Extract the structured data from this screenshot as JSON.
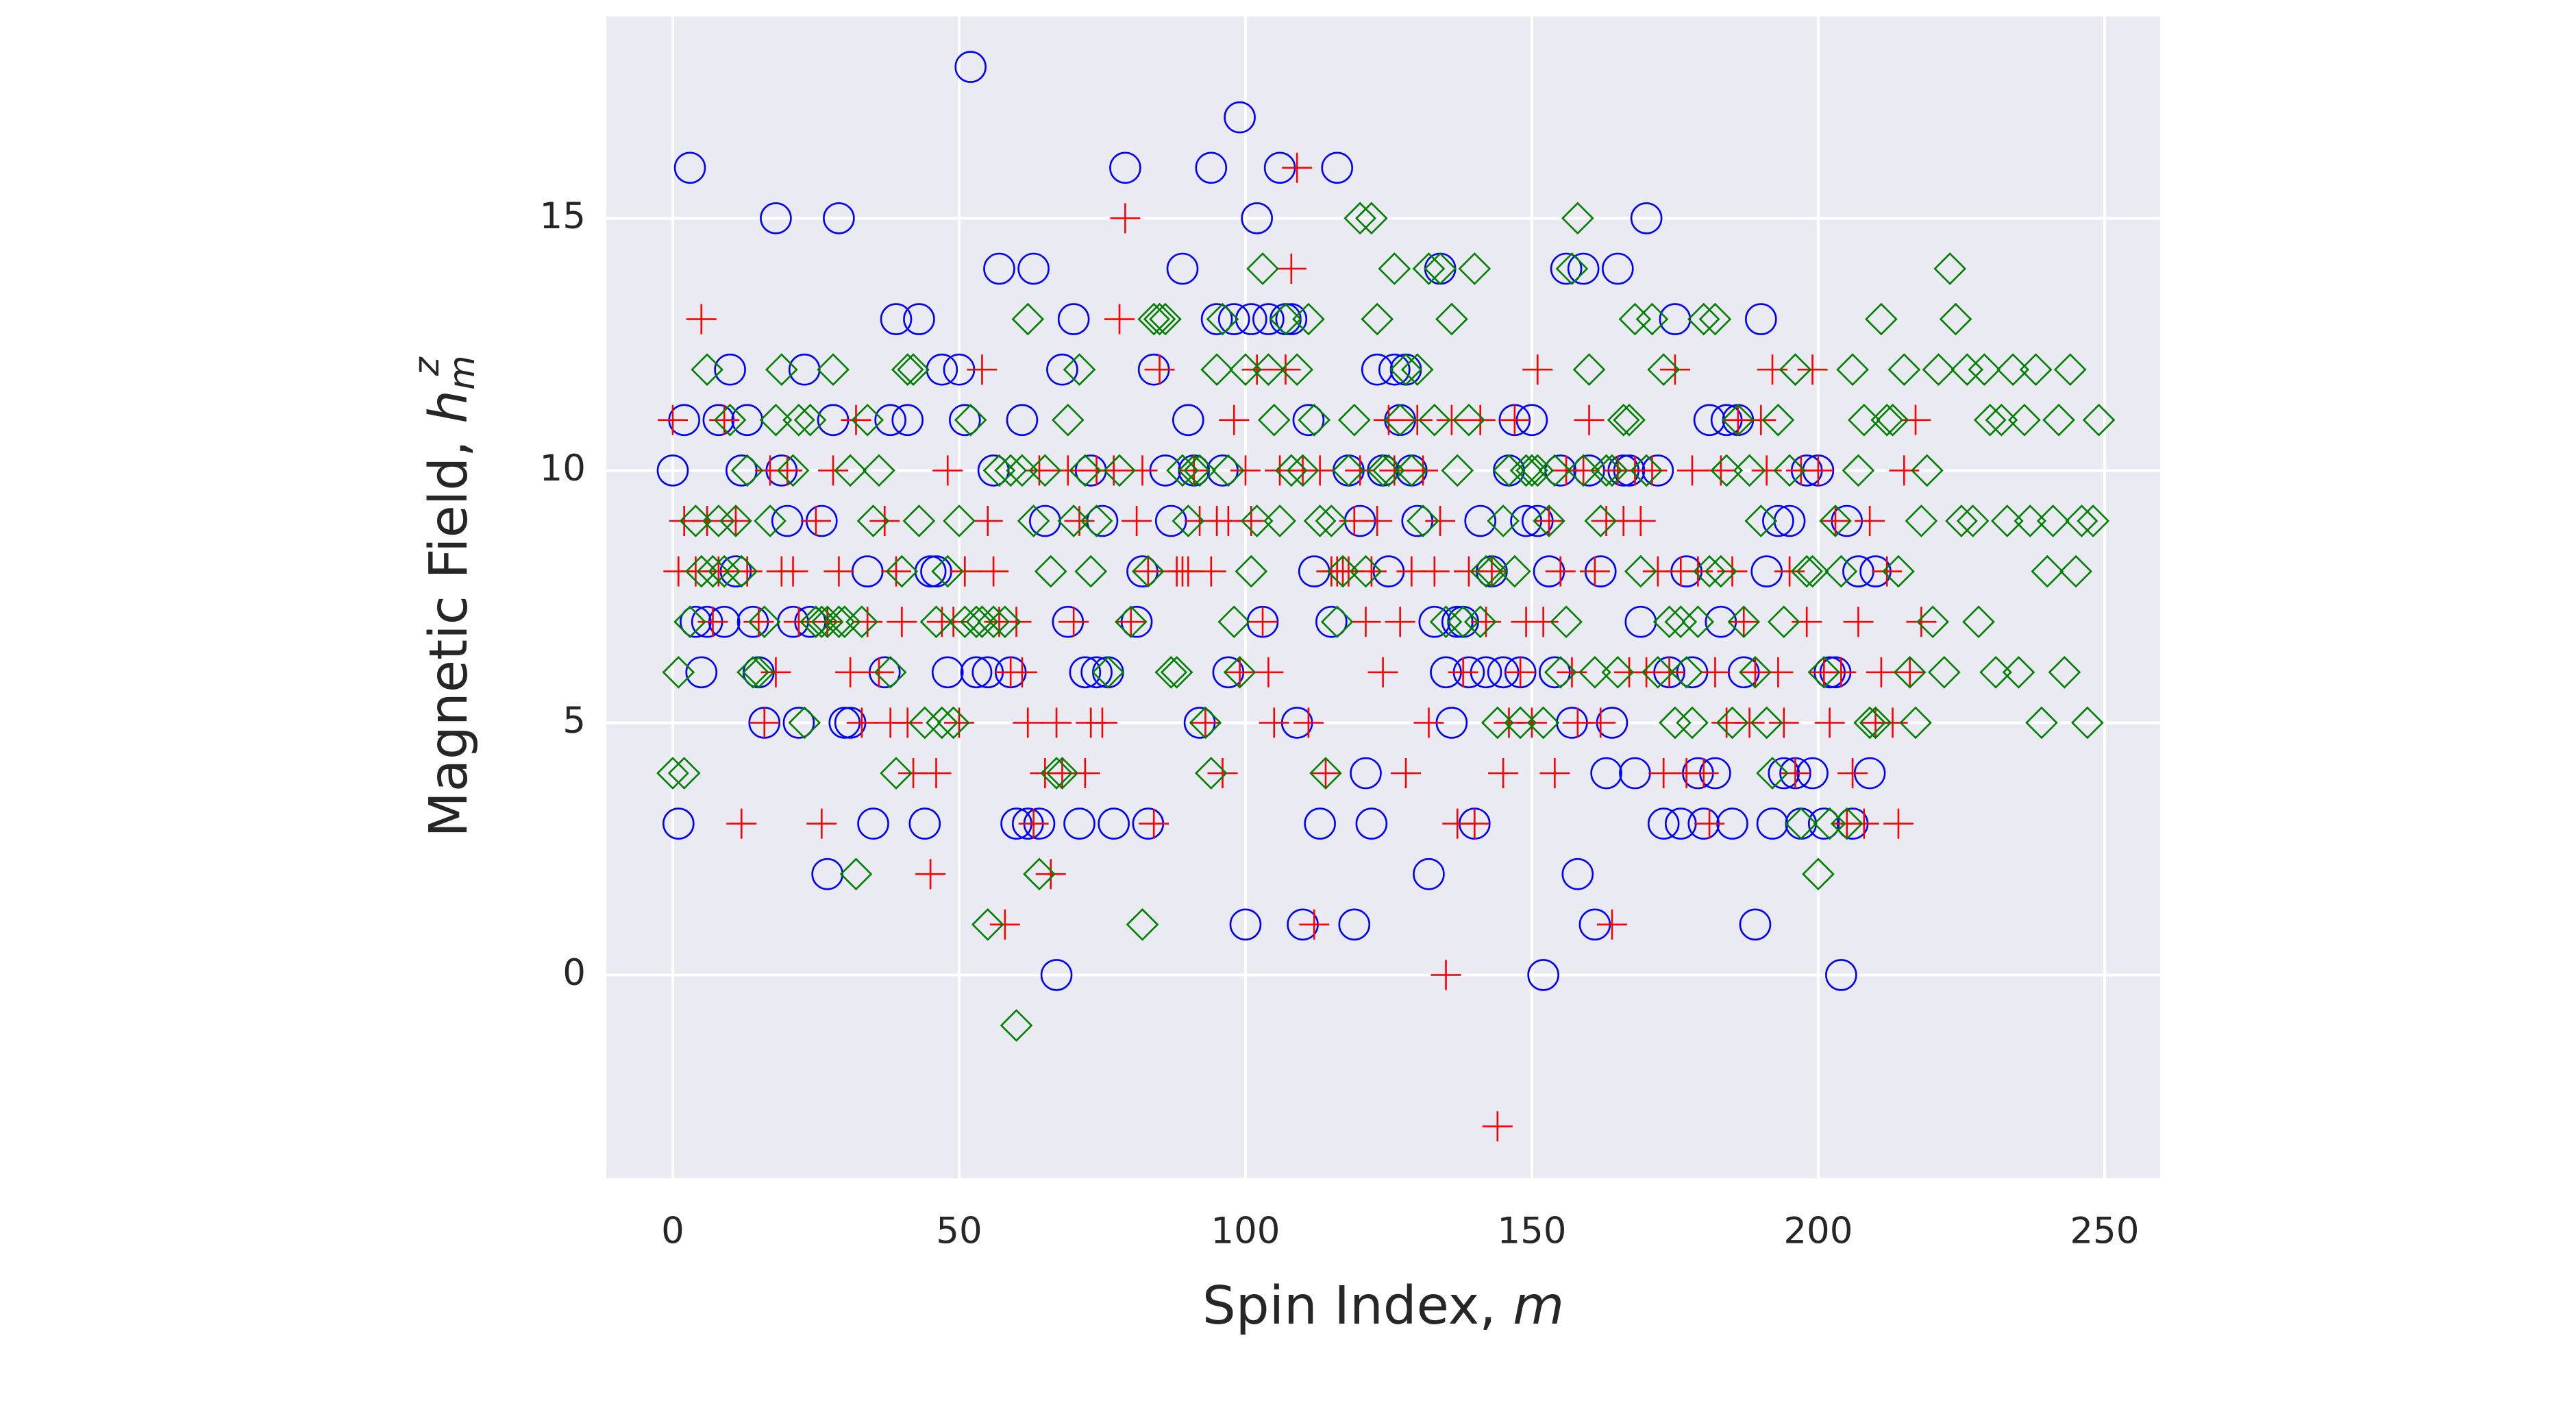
{
  "chart_data": {
    "type": "scatter",
    "xlabel": [
      "Spin Index, ",
      "m"
    ],
    "ylabel": [
      "Magnetic Field, ",
      "h",
      "m",
      "z"
    ],
    "xlim": [
      -11.6,
      259.7
    ],
    "ylim": [
      -4.03,
      19.0
    ],
    "xticks": [
      0,
      50,
      100,
      150,
      200,
      250
    ],
    "yticks": [
      0,
      5,
      10,
      15
    ],
    "grid": true,
    "background": "#eaeaf2",
    "series": [
      {
        "color": "#0000ff",
        "marker": "circle",
        "x": [
          0,
          1,
          2,
          3,
          4,
          5,
          6,
          8,
          9,
          10,
          11,
          12,
          13,
          14,
          15,
          16,
          18,
          19,
          20,
          21,
          22,
          23,
          24,
          26,
          27,
          28,
          29,
          30,
          31,
          34,
          35,
          37,
          38,
          39,
          41,
          43,
          44,
          45,
          46,
          47,
          48,
          50,
          51,
          52,
          53,
          55,
          56,
          57,
          59,
          60,
          61,
          62,
          63,
          64,
          65,
          67,
          68,
          69,
          70,
          71,
          72,
          73,
          74,
          75,
          76,
          77,
          79,
          81,
          82,
          83,
          84,
          86,
          87,
          89,
          90,
          91,
          92,
          94,
          95,
          96,
          97,
          98,
          99,
          100,
          101,
          102,
          103,
          104,
          106,
          107,
          108,
          109,
          110,
          111,
          112,
          113,
          115,
          116,
          118,
          119,
          120,
          121,
          122,
          123,
          124,
          125,
          126,
          127,
          128,
          129,
          130,
          132,
          133,
          134,
          135,
          136,
          137,
          138,
          139,
          140,
          141,
          142,
          143,
          145,
          146,
          147,
          148,
          149,
          150,
          151,
          152,
          153,
          154,
          155,
          156,
          157,
          158,
          159,
          160,
          161,
          162,
          163,
          164,
          165,
          166,
          167,
          168,
          169,
          170,
          172,
          173,
          174,
          175,
          176,
          177,
          178,
          179,
          180,
          181,
          182,
          183,
          184,
          185,
          186,
          187,
          189,
          190,
          191,
          192,
          193,
          194,
          195,
          196,
          197,
          198,
          199,
          200,
          201,
          202,
          203,
          204,
          205,
          206,
          207,
          209,
          210
        ],
        "values": [
          10,
          3,
          11,
          16,
          7,
          6,
          7,
          11,
          7,
          12,
          8,
          10,
          11,
          7,
          6,
          5,
          15,
          10,
          9,
          7,
          5,
          12,
          7,
          9,
          2,
          11,
          15,
          5,
          5,
          8,
          3,
          6,
          11,
          13,
          11,
          13,
          3,
          8,
          8,
          12,
          6,
          12,
          11,
          18,
          6,
          6,
          10,
          14,
          6,
          3,
          11,
          3,
          14,
          3,
          9,
          0,
          12,
          7,
          13,
          3,
          6,
          10,
          6,
          9,
          6,
          3,
          16,
          7,
          8,
          3,
          12,
          10,
          9,
          14,
          11,
          10,
          5,
          16,
          13,
          10,
          6,
          13,
          17,
          1,
          13,
          15,
          7,
          13,
          16,
          13,
          13,
          5,
          1,
          11,
          8,
          3,
          7,
          16,
          10,
          1,
          9,
          4,
          3,
          12,
          10,
          8,
          12,
          11,
          12,
          10,
          9,
          2,
          7,
          14,
          6,
          5,
          7,
          7,
          6,
          3,
          9,
          6,
          8,
          6,
          10,
          11,
          6,
          9,
          11,
          9,
          0,
          8,
          6,
          10,
          14,
          5,
          2,
          14,
          10,
          1,
          8,
          4,
          5,
          14,
          10,
          10,
          4,
          7,
          15,
          10,
          3,
          6,
          13,
          3,
          8,
          6,
          4,
          3,
          11,
          4,
          7,
          11,
          3,
          11,
          6,
          1,
          13,
          8,
          3,
          9,
          4,
          9,
          4,
          3,
          10,
          4,
          10,
          3,
          6,
          6,
          0,
          9,
          3,
          8,
          4,
          8
        ]
      },
      {
        "color": "#ff0000",
        "marker": "plus",
        "x": [
          0,
          1,
          2,
          4,
          5,
          6,
          7,
          8,
          9,
          11,
          12,
          13,
          15,
          16,
          17,
          18,
          19,
          20,
          21,
          22,
          25,
          26,
          27,
          28,
          29,
          31,
          32,
          33,
          34,
          36,
          37,
          38,
          39,
          40,
          41,
          42,
          45,
          46,
          47,
          48,
          49,
          50,
          51,
          54,
          55,
          56,
          57,
          58,
          59,
          60,
          61,
          62,
          63,
          64,
          65,
          66,
          67,
          68,
          69,
          70,
          71,
          72,
          73,
          74,
          75,
          77,
          78,
          79,
          80,
          81,
          82,
          83,
          84,
          85,
          88,
          89,
          90,
          91,
          92,
          93,
          94,
          95,
          96,
          97,
          98,
          99,
          100,
          101,
          102,
          103,
          104,
          105,
          106,
          107,
          108,
          109,
          110,
          111,
          112,
          113,
          114,
          115,
          116,
          117,
          118,
          119,
          120,
          121,
          122,
          123,
          124,
          125,
          126,
          127,
          128,
          129,
          130,
          131,
          132,
          133,
          134,
          135,
          136,
          137,
          138,
          139,
          140,
          141,
          142,
          143,
          144,
          145,
          146,
          147,
          148,
          149,
          150,
          151,
          152,
          153,
          154,
          155,
          156,
          157,
          158,
          159,
          160,
          161,
          162,
          163,
          164,
          165,
          166,
          167,
          168,
          169,
          170,
          171,
          172,
          173,
          174,
          175,
          176,
          177,
          178,
          179,
          180,
          181,
          182,
          183,
          184,
          185,
          186,
          187,
          188,
          189,
          190,
          191,
          192,
          193,
          194,
          195,
          196,
          197,
          198,
          199,
          200,
          201,
          202,
          203,
          204,
          205,
          206,
          207,
          208,
          209,
          210,
          211,
          212,
          213,
          214,
          215,
          216,
          217,
          218
        ],
        "values": [
          11,
          8,
          9,
          8,
          13,
          9,
          7,
          8,
          11,
          9,
          3,
          8,
          7,
          5,
          10,
          6,
          8,
          10,
          8,
          7,
          9,
          3,
          7,
          10,
          8,
          6,
          11,
          5,
          7,
          6,
          9,
          5,
          8,
          7,
          5,
          4,
          2,
          4,
          7,
          10,
          7,
          5,
          8,
          12,
          9,
          8,
          7,
          1,
          6,
          7,
          6,
          5,
          3,
          10,
          4,
          2,
          5,
          4,
          10,
          7,
          9,
          4,
          5,
          10,
          5,
          10,
          13,
          15,
          7,
          9,
          10,
          8,
          3,
          12,
          8,
          8,
          8,
          10,
          9,
          5,
          8,
          9,
          4,
          9,
          11,
          6,
          10,
          9,
          12,
          7,
          6,
          5,
          10,
          12,
          14,
          16,
          10,
          5,
          1,
          10,
          4,
          8,
          8,
          8,
          8,
          9,
          10,
          7,
          8,
          9,
          6,
          11,
          10,
          7,
          4,
          8,
          11,
          10,
          5,
          8,
          9,
          0,
          11,
          3,
          6,
          8,
          3,
          11,
          7,
          8,
          -3,
          4,
          5,
          11,
          6,
          7,
          5,
          12,
          7,
          9,
          4,
          8,
          10,
          6,
          5,
          10,
          11,
          8,
          5,
          9,
          1,
          10,
          9,
          6,
          10,
          9,
          6,
          10,
          8,
          4,
          6,
          12,
          8,
          4,
          10,
          8,
          4,
          3,
          6,
          10,
          5,
          8,
          11,
          7,
          5,
          6,
          11,
          10,
          12,
          6,
          5,
          8,
          4,
          10,
          7,
          12,
          10,
          6,
          5,
          9,
          6,
          3,
          4,
          7,
          3,
          9,
          5,
          6,
          8,
          5,
          3,
          10,
          6,
          11,
          7
        ]
      },
      {
        "color": "#008000",
        "marker": "diamond",
        "x": [
          0,
          1,
          2,
          3,
          4,
          5,
          6,
          7,
          8,
          9,
          10,
          11,
          12,
          13,
          14,
          15,
          16,
          17,
          18,
          19,
          21,
          22,
          23,
          24,
          25,
          26,
          27,
          28,
          29,
          30,
          31,
          32,
          33,
          34,
          35,
          36,
          38,
          39,
          40,
          41,
          42,
          43,
          44,
          46,
          47,
          48,
          49,
          50,
          51,
          52,
          53,
          54,
          55,
          56,
          57,
          58,
          59,
          60,
          61,
          62,
          63,
          64,
          65,
          66,
          67,
          68,
          69,
          70,
          71,
          72,
          73,
          74,
          76,
          78,
          80,
          82,
          83,
          84,
          85,
          86,
          87,
          88,
          89,
          90,
          91,
          92,
          93,
          94,
          95,
          96,
          97,
          98,
          99,
          100,
          101,
          102,
          103,
          104,
          105,
          106,
          107,
          108,
          109,
          110,
          111,
          112,
          113,
          114,
          115,
          116,
          117,
          118,
          119,
          120,
          121,
          122,
          123,
          124,
          125,
          126,
          127,
          128,
          129,
          130,
          131,
          132,
          133,
          134,
          135,
          136,
          137,
          138,
          139,
          140,
          141,
          142,
          143,
          144,
          145,
          146,
          147,
          148,
          149,
          150,
          151,
          152,
          153,
          154,
          155,
          156,
          157,
          158,
          159,
          160,
          161,
          162,
          163,
          164,
          165,
          166,
          167,
          168,
          169,
          170,
          171,
          172,
          173,
          174,
          175,
          176,
          177,
          178,
          179,
          180,
          181,
          182,
          183,
          184,
          185,
          186,
          187,
          188,
          189,
          190,
          191,
          192,
          193,
          194,
          195,
          196,
          197,
          198,
          199,
          200,
          201,
          202,
          203,
          204,
          205,
          206,
          207,
          208,
          209,
          210,
          211,
          212,
          213,
          214,
          215,
          216,
          217,
          218,
          219,
          220,
          221,
          222,
          223,
          224,
          225,
          226,
          227,
          228,
          229,
          230,
          231,
          232,
          233,
          234,
          235,
          236,
          237,
          238,
          239,
          240,
          241,
          242,
          243,
          244,
          245,
          246,
          247,
          248,
          249
        ],
        "values": [
          4,
          6,
          4,
          7,
          9,
          8,
          12,
          8,
          9,
          8,
          11,
          9,
          8,
          10,
          6,
          6,
          7,
          9,
          11,
          12,
          10,
          11,
          5,
          11,
          7,
          7,
          7,
          12,
          7,
          7,
          10,
          2,
          7,
          11,
          9,
          10,
          6,
          4,
          8,
          12,
          12,
          9,
          5,
          7,
          5,
          8,
          5,
          9,
          7,
          11,
          7,
          7,
          1,
          7,
          10,
          7,
          10,
          -1,
          10,
          13,
          9,
          2,
          10,
          8,
          4,
          4,
          11,
          9,
          12,
          10,
          8,
          9,
          6,
          10,
          7,
          1,
          8,
          13,
          13,
          13,
          6,
          6,
          10,
          9,
          10,
          10,
          5,
          4,
          12,
          13,
          10,
          7,
          6,
          12,
          8,
          9,
          14,
          12,
          11,
          9,
          13,
          10,
          12,
          10,
          13,
          11,
          9,
          4,
          9,
          7,
          8,
          10,
          11,
          15,
          8,
          15,
          13,
          10,
          10,
          14,
          11,
          12,
          10,
          12,
          9,
          14,
          11,
          14,
          7,
          13,
          10,
          7,
          11,
          14,
          7,
          8,
          8,
          5,
          9,
          10,
          8,
          5,
          10,
          10,
          10,
          5,
          9,
          10,
          6,
          7,
          14,
          15,
          10,
          12,
          6,
          9,
          10,
          10,
          6,
          11,
          11,
          13,
          8,
          10,
          13,
          6,
          12,
          7,
          5,
          7,
          6,
          5,
          7,
          13,
          8,
          13,
          8,
          10,
          5,
          11,
          7,
          10,
          6,
          9,
          5,
          4,
          11,
          7,
          10,
          12,
          3,
          8,
          8,
          2,
          6,
          3,
          9,
          8,
          3,
          12,
          10,
          11,
          5,
          5,
          13,
          11,
          11,
          8,
          12,
          6,
          5,
          9,
          10,
          7,
          12,
          6,
          14,
          13,
          9,
          12,
          9,
          7,
          12,
          11,
          6,
          11,
          9,
          12,
          6,
          11,
          9,
          12,
          5,
          8,
          9,
          11,
          6,
          12,
          8,
          9,
          5,
          9,
          11
        ]
      }
    ]
  }
}
